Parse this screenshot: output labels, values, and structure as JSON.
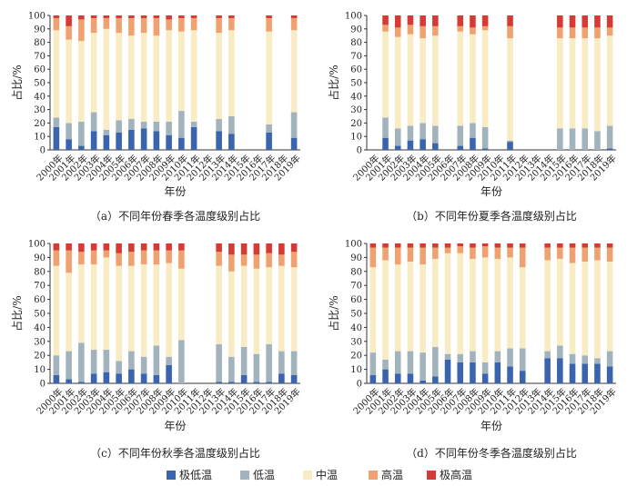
{
  "figure": {
    "years": [
      "2000年",
      "2001年",
      "2002年",
      "2003年",
      "2004年",
      "2005年",
      "2006年",
      "2007年",
      "2008年",
      "2009年",
      "2010年",
      "2011年",
      "2012年",
      "2013年",
      "2014年",
      "2015年",
      "2016年",
      "2017年",
      "2018年",
      "2019年"
    ],
    "yticks": [
      "0",
      "10",
      "20",
      "30",
      "40",
      "50",
      "60",
      "70",
      "80",
      "90",
      "100"
    ]
  },
  "legend": [
    {
      "name": "极低温",
      "color": "#3a64ad"
    },
    {
      "name": "低温",
      "color": "#a3b3bd"
    },
    {
      "name": "中温",
      "color": "#f8ecc4"
    },
    {
      "name": "高温",
      "color": "#f0a170"
    },
    {
      "name": "极高温",
      "color": "#d63a34"
    }
  ],
  "chart_data": [
    {
      "type": "bar",
      "stacked": true,
      "caption": "（a）不同年份春季各温度级别占比",
      "xlabel": "年份",
      "ylabel": "占比/%",
      "ylim": [
        0,
        100
      ],
      "categories": [
        "2000年",
        "2001年",
        "2002年",
        "2003年",
        "2004年",
        "2005年",
        "2006年",
        "2007年",
        "2008年",
        "2009年",
        "2010年",
        "2011年",
        "2012年",
        "2013年",
        "2014年",
        "2015年",
        "2016年",
        "2017年",
        "2018年",
        "2019年"
      ],
      "series": [
        {
          "name": "极低温",
          "values": [
            17,
            8,
            3,
            14,
            11,
            13,
            15,
            16,
            14,
            11,
            9,
            17,
            null,
            14,
            12,
            null,
            null,
            13,
            null,
            9
          ]
        },
        {
          "name": "低温",
          "values": [
            7,
            12,
            18,
            14,
            4,
            9,
            8,
            5,
            7,
            10,
            20,
            4,
            null,
            9,
            13,
            null,
            null,
            6,
            null,
            19
          ]
        },
        {
          "name": "中温",
          "values": [
            65,
            62,
            60,
            59,
            75,
            65,
            62,
            66,
            64,
            68,
            59,
            68,
            null,
            64,
            64,
            null,
            null,
            69,
            null,
            61
          ]
        },
        {
          "name": "高温",
          "values": [
            9,
            10,
            16,
            11,
            8,
            11,
            13,
            11,
            13,
            8,
            10,
            9,
            null,
            11,
            9,
            null,
            null,
            10,
            null,
            9
          ]
        },
        {
          "name": "极高温",
          "values": [
            2,
            8,
            3,
            2,
            2,
            2,
            2,
            2,
            2,
            3,
            2,
            2,
            null,
            2,
            2,
            null,
            null,
            2,
            null,
            2
          ]
        }
      ]
    },
    {
      "type": "bar",
      "stacked": true,
      "caption": "（b）不同年份夏季各温度级别占比",
      "xlabel": "年份",
      "ylabel": "占比/%",
      "ylim": [
        0,
        100
      ],
      "categories": [
        "2000年",
        "2001年",
        "2002年",
        "2003年",
        "2004年",
        "2005年",
        "2006年",
        "2007年",
        "2008年",
        "2009年",
        "2010年",
        "2011年",
        "2012年",
        "2013年",
        "2014年",
        "2015年",
        "2016年",
        "2017年",
        "2018年",
        "2019年"
      ],
      "series": [
        {
          "name": "极低温",
          "values": [
            null,
            9,
            3,
            7,
            8,
            5,
            null,
            3,
            9,
            1,
            null,
            6,
            null,
            null,
            null,
            0,
            0,
            0,
            0,
            1
          ]
        },
        {
          "name": "低温",
          "values": [
            null,
            15,
            13,
            11,
            12,
            13,
            null,
            15,
            11,
            16,
            null,
            1,
            null,
            null,
            null,
            16,
            16,
            16,
            14,
            17
          ]
        },
        {
          "name": "中温",
          "values": [
            null,
            64,
            68,
            68,
            63,
            67,
            null,
            70,
            66,
            72,
            null,
            76,
            null,
            null,
            null,
            67,
            67,
            67,
            69,
            67
          ]
        },
        {
          "name": "高温",
          "values": [
            null,
            5,
            7,
            7,
            9,
            7,
            null,
            4,
            5,
            3,
            null,
            9,
            null,
            null,
            null,
            8,
            8,
            8,
            8,
            6
          ]
        },
        {
          "name": "极高温",
          "values": [
            null,
            7,
            9,
            7,
            8,
            8,
            null,
            8,
            9,
            8,
            null,
            8,
            null,
            null,
            null,
            9,
            9,
            9,
            9,
            9
          ]
        }
      ]
    },
    {
      "type": "bar",
      "stacked": true,
      "caption": "（c）不同年份秋季各温度级别占比",
      "xlabel": "年份",
      "ylabel": "占比/%",
      "ylim": [
        0,
        100
      ],
      "categories": [
        "2000年",
        "2001年",
        "2002年",
        "2003年",
        "2004年",
        "2005年",
        "2006年",
        "2007年",
        "2008年",
        "2009年",
        "2010年",
        "2011年",
        "2012年",
        "2013年",
        "2014年",
        "2015年",
        "2016年",
        "2017年",
        "2018年",
        "2019年"
      ],
      "series": [
        {
          "name": "极低温",
          "values": [
            6,
            3,
            1,
            7,
            8,
            7,
            10,
            7,
            6,
            13,
            null,
            null,
            null,
            1,
            1,
            6,
            1,
            1,
            7,
            6
          ]
        },
        {
          "name": "低温",
          "values": [
            14,
            20,
            28,
            17,
            16,
            9,
            13,
            12,
            21,
            6,
            31,
            null,
            null,
            27,
            18,
            20,
            20,
            27,
            16,
            17
          ]
        },
        {
          "name": "中温",
          "values": [
            64,
            56,
            56,
            61,
            66,
            68,
            61,
            66,
            58,
            67,
            51,
            null,
            null,
            56,
            61,
            58,
            61,
            55,
            61,
            60
          ]
        },
        {
          "name": "高温",
          "values": [
            11,
            16,
            9,
            10,
            5,
            9,
            10,
            10,
            10,
            9,
            13,
            null,
            null,
            10,
            12,
            8,
            10,
            10,
            8,
            11
          ]
        },
        {
          "name": "极高温",
          "values": [
            5,
            5,
            6,
            5,
            5,
            7,
            6,
            5,
            5,
            5,
            5,
            null,
            null,
            6,
            8,
            8,
            8,
            7,
            8,
            6
          ]
        }
      ]
    },
    {
      "type": "bar",
      "stacked": true,
      "caption": "（d）不同年份冬季各温度级别占比",
      "xlabel": "年份",
      "ylabel": "占比/%",
      "ylim": [
        0,
        100
      ],
      "categories": [
        "2000年",
        "2001年",
        "2002年",
        "2003年",
        "2004年",
        "2005年",
        "2006年",
        "2007年",
        "2008年",
        "2009年",
        "2010年",
        "2011年",
        "2012年",
        "2013年",
        "2014年",
        "2015年",
        "2016年",
        "2017年",
        "2018年",
        "2019年"
      ],
      "series": [
        {
          "name": "极低温",
          "values": [
            6,
            10,
            7,
            7,
            2,
            5,
            17,
            15,
            15,
            7,
            15,
            12,
            9,
            null,
            18,
            18,
            14,
            14,
            14,
            12
          ]
        },
        {
          "name": "低温",
          "values": [
            16,
            7,
            16,
            16,
            20,
            21,
            4,
            6,
            8,
            8,
            8,
            13,
            16,
            null,
            5,
            9,
            7,
            6,
            4,
            11
          ]
        },
        {
          "name": "中温",
          "values": [
            61,
            71,
            62,
            64,
            63,
            63,
            72,
            72,
            66,
            75,
            66,
            65,
            58,
            null,
            65,
            62,
            65,
            67,
            70,
            64
          ]
        },
        {
          "name": "高温",
          "values": [
            14,
            9,
            12,
            10,
            12,
            8,
            4,
            5,
            8,
            8,
            8,
            7,
            14,
            null,
            9,
            8,
            11,
            10,
            9,
            10
          ]
        },
        {
          "name": "极高温",
          "values": [
            3,
            3,
            3,
            3,
            3,
            3,
            3,
            2,
            3,
            2,
            3,
            3,
            3,
            null,
            3,
            3,
            3,
            3,
            3,
            3
          ]
        }
      ]
    }
  ]
}
